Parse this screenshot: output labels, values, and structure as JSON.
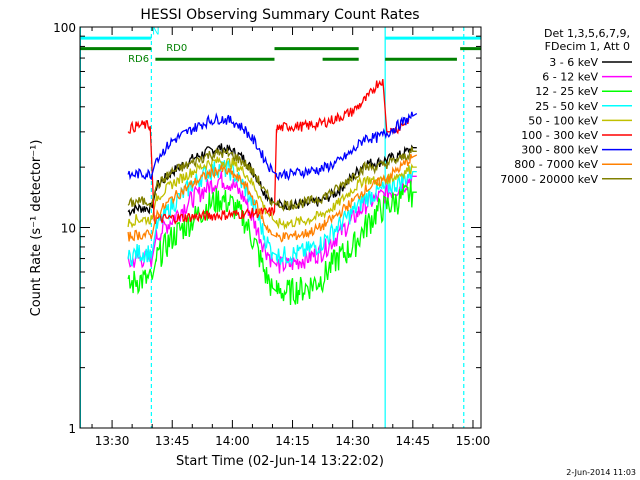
{
  "chart_data": {
    "type": "line",
    "title": "HESSI Observing Summary Count Rates",
    "xlabel": "Start Time (02-Jun-14 13:22:02)",
    "ylabel": "Count Rate (s⁻¹ detector⁻¹)",
    "yscale": "log",
    "ylim": [
      1,
      100
    ],
    "xlim": [
      "13:22:02",
      "15:02:00"
    ],
    "x_units": "minutes after 13:00",
    "xlim_minutes": [
      22.0,
      122.0
    ],
    "x_ticks": [
      {
        "label": "13:30",
        "value": 30
      },
      {
        "label": "13:45",
        "value": 45
      },
      {
        "label": "14:00",
        "value": 60
      },
      {
        "label": "14:15",
        "value": 75
      },
      {
        "label": "14:30",
        "value": 90
      },
      {
        "label": "14:45",
        "value": 105
      },
      {
        "label": "15:00",
        "value": 120
      }
    ],
    "y_ticks": [
      {
        "label": "1",
        "value": 1
      },
      {
        "label": "10",
        "value": 10
      },
      {
        "label": "100",
        "value": 100
      }
    ],
    "legend_position": "right",
    "legend_header": [
      "Det 1,3,5,6,7,9,",
      "FDecim 1, Att 0"
    ],
    "footer_date": "2-Jun-2014 11:03",
    "vlines": [
      {
        "x": 22.1,
        "color": "#00ffff",
        "style": "solid"
      },
      {
        "x": 39.8,
        "color": "#00ffff",
        "style": "dashed"
      },
      {
        "x": 98.1,
        "color": "#00ffff",
        "style": "solid"
      },
      {
        "x": 117.7,
        "color": "#00ffff",
        "style": "dashed"
      }
    ],
    "flag_bars": [
      {
        "segments": [
          [
            22.1,
            39.8
          ],
          [
            98.1,
            122.0
          ]
        ],
        "y": 88,
        "color": "#00ffff"
      },
      {
        "segments": [
          [
            22.1,
            39.8
          ]
        ],
        "y": 78,
        "color": "#008000"
      },
      {
        "segments": [
          [
            40.8,
            70.5
          ],
          [
            82.5,
            91.5
          ],
          [
            98.1,
            116.0
          ]
        ],
        "y": 69,
        "color": "#008000"
      },
      {
        "segments": [
          [
            70.5,
            91.5
          ],
          [
            116.8,
            122.0
          ]
        ],
        "y": 78,
        "color": "#008000"
      }
    ],
    "annotations": [
      {
        "text": "N",
        "x": 40.0,
        "y": 92,
        "color": "#00ffff"
      },
      {
        "text": "RD0",
        "x": 43.5,
        "y": 76,
        "color": "#008000"
      },
      {
        "text": "RD6",
        "x": 34.0,
        "y": 67,
        "color": "#008000"
      }
    ],
    "series": [
      {
        "name": "3 - 6 keV",
        "color": "#000000",
        "x": [
          34,
          36,
          40,
          41,
          45,
          50,
          54,
          57,
          60,
          63,
          66,
          68,
          70,
          71,
          74,
          78,
          82,
          86,
          90,
          93,
          96,
          99,
          102,
          105,
          106
        ],
        "y": [
          12,
          12.5,
          12.5,
          16,
          19,
          22,
          24,
          25,
          24,
          22,
          18,
          15,
          13.5,
          13,
          13,
          13,
          13.5,
          15,
          18,
          21,
          21,
          22,
          23,
          25,
          25
        ]
      },
      {
        "name": "6 - 12 keV",
        "color": "#ff00ff",
        "x": [
          34,
          36,
          40,
          41,
          45,
          50,
          54,
          57,
          60,
          63,
          66,
          68,
          70,
          71,
          74,
          78,
          82,
          86,
          90,
          93,
          96,
          99,
          102,
          105,
          106
        ],
        "y": [
          6.5,
          7,
          7,
          9,
          11,
          14,
          16,
          17.5,
          16.5,
          14,
          10,
          8,
          6.8,
          6.5,
          6.5,
          7,
          7.5,
          9,
          11,
          13,
          14,
          15,
          16,
          18,
          18
        ]
      },
      {
        "name": "12 - 25 keV",
        "color": "#00ff00",
        "x": [
          34,
          36,
          40,
          41,
          45,
          50,
          54,
          57,
          60,
          63,
          66,
          68,
          70,
          71,
          74,
          78,
          82,
          86,
          90,
          93,
          96,
          99,
          102,
          105,
          106
        ],
        "y": [
          5,
          5.5,
          5.5,
          7,
          9,
          11,
          13,
          14,
          13,
          11,
          8,
          6,
          5,
          4.8,
          4.8,
          5,
          5.5,
          7,
          8,
          10,
          12,
          13,
          14,
          15,
          15
        ]
      },
      {
        "name": "25 - 50 keV",
        "color": "#00ffff",
        "x": [
          34,
          36,
          40,
          41,
          45,
          50,
          54,
          57,
          60,
          63,
          66,
          68,
          70,
          71,
          74,
          78,
          82,
          86,
          90,
          93,
          96,
          99,
          102,
          105,
          106
        ],
        "y": [
          7,
          7.5,
          7.5,
          10,
          13,
          16.5,
          19,
          20,
          19,
          16,
          12,
          9,
          7.5,
          7.3,
          7.3,
          7.6,
          8.3,
          10,
          12,
          14,
          15,
          16,
          17,
          19,
          19
        ]
      },
      {
        "name": "50 - 100 keV",
        "color": "#c0c000",
        "x": [
          34,
          36,
          40,
          41,
          45,
          50,
          54,
          57,
          60,
          63,
          66,
          68,
          70,
          71,
          74,
          78,
          82,
          86,
          90,
          93,
          96,
          99,
          102,
          105,
          106
        ],
        "y": [
          10.5,
          11,
          11,
          14,
          16.5,
          19,
          21,
          21.5,
          21,
          19,
          15.5,
          12.5,
          11,
          10.5,
          10.5,
          10.8,
          11.5,
          13,
          15.5,
          17.5,
          17,
          17.5,
          18.5,
          20,
          20
        ]
      },
      {
        "name": "100 - 300 keV",
        "color": "#ff0000",
        "x": [
          34,
          36,
          38,
          39.5,
          40.5,
          70.5,
          71,
          74,
          78,
          82,
          86,
          90,
          94,
          96,
          97.5,
          98.5,
          99.5,
          102,
          104
        ],
        "y": [
          31,
          32,
          32.5,
          32,
          11,
          12,
          31,
          32,
          32,
          33,
          35,
          38,
          45,
          52,
          55,
          30,
          30,
          32,
          35
        ]
      },
      {
        "name": "300 - 800 keV",
        "color": "#0000ff",
        "x": [
          34,
          36,
          40,
          41,
          45,
          50,
          54,
          57,
          60,
          63,
          66,
          68,
          70,
          71,
          74,
          78,
          82,
          86,
          90,
          93,
          96,
          99,
          102,
          105,
          106
        ],
        "y": [
          18,
          18.5,
          18.5,
          22,
          27,
          31,
          34,
          35,
          34,
          31,
          26,
          22,
          19,
          18.5,
          18.5,
          19,
          19.5,
          21,
          24,
          28,
          28,
          30,
          33,
          36,
          37
        ]
      },
      {
        "name": "800 - 7000 keV",
        "color": "#ff8000",
        "x": [
          34,
          36,
          40,
          41,
          45,
          50,
          54,
          57,
          60,
          63,
          66,
          68,
          70,
          71,
          74,
          78,
          82,
          86,
          90,
          93,
          96,
          99,
          102,
          105,
          106
        ],
        "y": [
          9,
          9.2,
          9.2,
          11.5,
          14,
          16.5,
          18.5,
          19.5,
          18.5,
          16.5,
          13,
          10.5,
          9.2,
          9,
          9,
          9.3,
          10,
          11.5,
          13.5,
          15.5,
          16.5,
          18,
          20,
          22.5,
          23
        ]
      },
      {
        "name": "7000 - 20000 keV",
        "color": "#808000",
        "x": [
          34,
          36,
          40,
          41,
          45,
          50,
          54,
          57,
          60,
          63,
          66,
          68,
          70,
          71,
          74,
          78,
          82,
          86,
          90,
          93,
          96,
          99,
          102,
          105,
          106
        ],
        "y": [
          13,
          13.5,
          13.5,
          16,
          19,
          21,
          23,
          23.5,
          23,
          21,
          18,
          15,
          13.5,
          13,
          13,
          13.3,
          14,
          15.5,
          18,
          20,
          20,
          21,
          22,
          24,
          24
        ]
      }
    ]
  }
}
